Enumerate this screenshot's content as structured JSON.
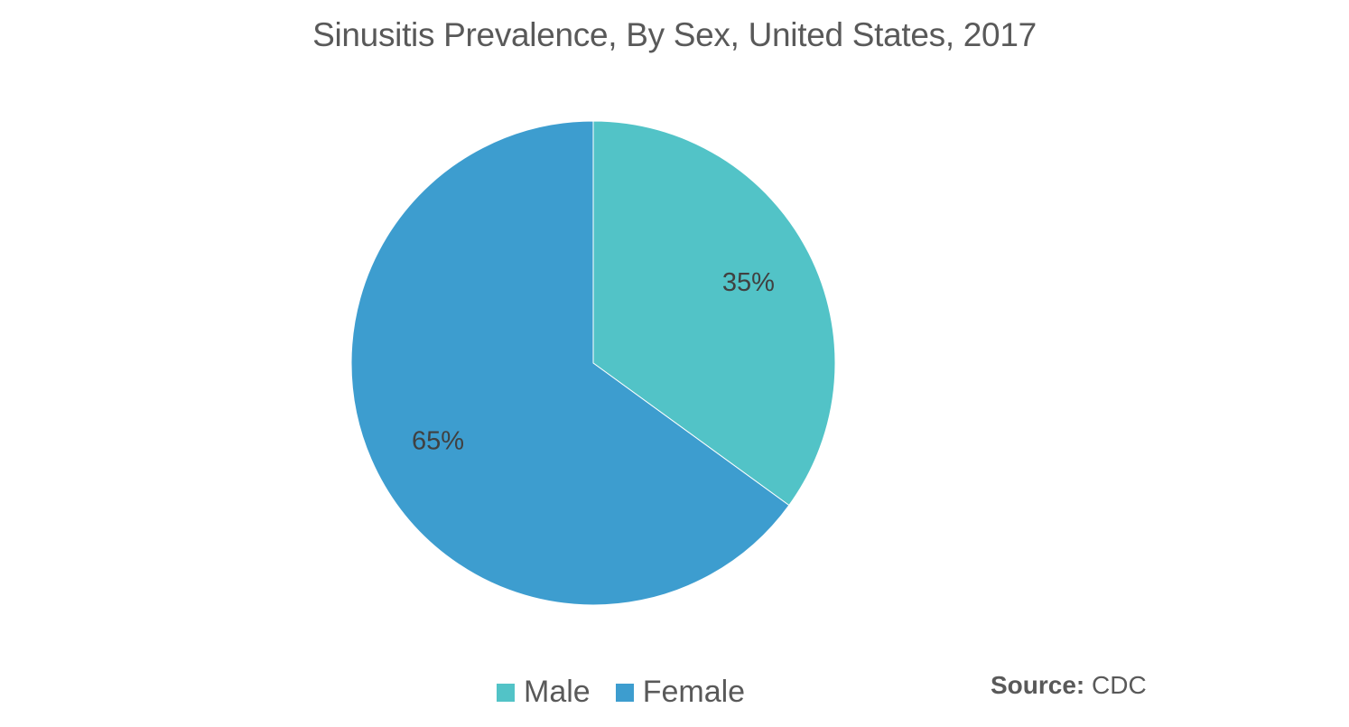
{
  "chart_data": {
    "type": "pie",
    "title": "Sinusitis Prevalence, By Sex, United States, 2017",
    "slices": [
      {
        "label": "Male",
        "value": 35,
        "display": "35%",
        "color": "#52C3C7"
      },
      {
        "label": "Female",
        "value": 65,
        "display": "65%",
        "color": "#3D9DCF"
      }
    ],
    "start_angle": "12 o'clock",
    "direction": "clockwise",
    "legend_position": "bottom"
  },
  "legend": {
    "items": [
      {
        "label": "Male",
        "color": "#52C3C7"
      },
      {
        "label": "Female",
        "color": "#3D9DCF"
      }
    ]
  },
  "source": {
    "label": "Source:",
    "value": "CDC"
  }
}
